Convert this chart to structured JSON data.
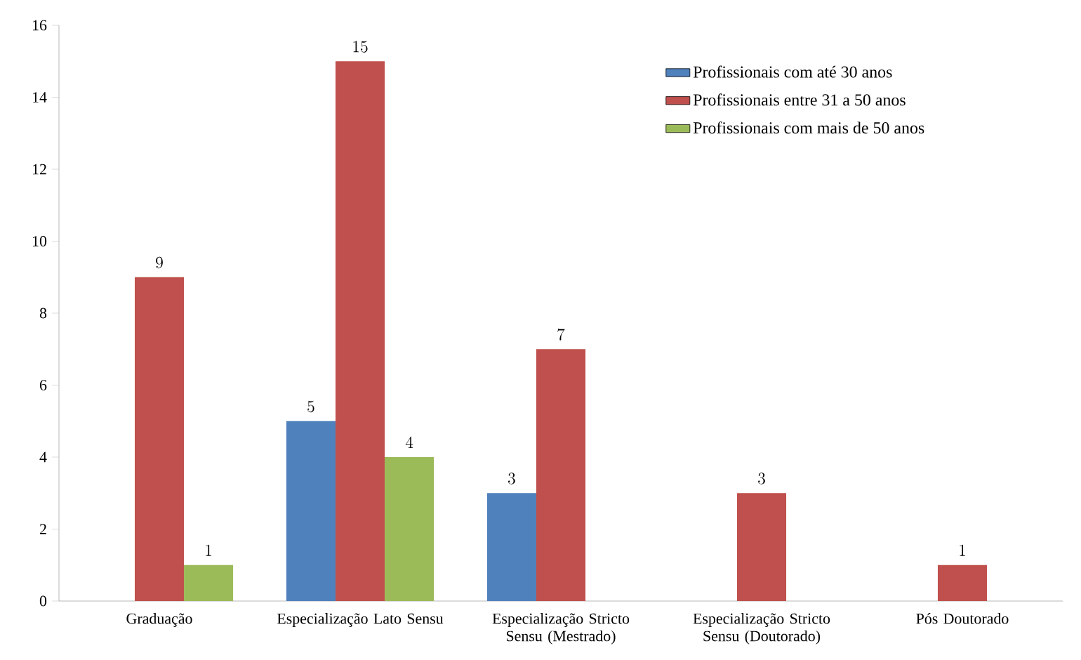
{
  "chart_data": {
    "type": "bar",
    "categories": [
      "Graduação",
      "Especialização  Lato Sensu",
      "Especialização Stricto Sensu (Mestrado)",
      "Especialização Stricto Sensu (Doutorado)",
      "Pós Doutorado"
    ],
    "series": [
      {
        "name": "Profissionais com até 30 anos",
        "color": "#4f81bd",
        "values": [
          null,
          5,
          3,
          null,
          null
        ]
      },
      {
        "name": "Profissionais entre 31 a 50 anos",
        "color": "#c0504d",
        "values": [
          9,
          15,
          7,
          3,
          1
        ]
      },
      {
        "name": "Profissionais com mais de 50 anos",
        "color": "#9bbb59",
        "values": [
          1,
          4,
          null,
          null,
          null
        ]
      }
    ],
    "ylim": [
      0,
      16
    ],
    "yticks": [
      0,
      2,
      4,
      6,
      8,
      10,
      12,
      14,
      16
    ],
    "data_labels": true,
    "legend": "top right",
    "grid": false
  }
}
